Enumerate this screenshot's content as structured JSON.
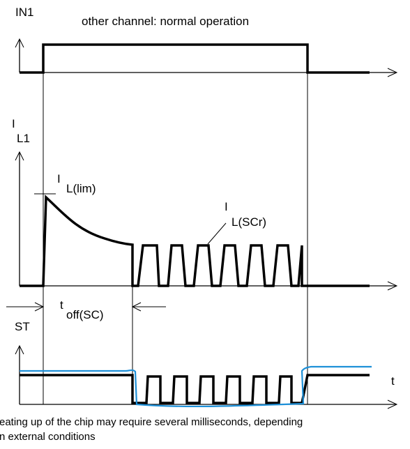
{
  "top_signal": {
    "name": "IN1",
    "note": "other channel: normal operation"
  },
  "middle_signal": {
    "name_main": "I",
    "name_sub": "L1",
    "limit_main": "I",
    "limit_sub": "L(lim)",
    "scr_main": "I",
    "scr_sub": "L(SCr)",
    "time_main": "t",
    "time_sub": "off(SC)"
  },
  "bottom_signal": {
    "name": "ST",
    "axis_label": "t"
  },
  "footnote": {
    "line1": "eating up of the chip may require several milliseconds, depending",
    "line2": "n external conditions"
  },
  "colors": {
    "signal": "#000000",
    "status_overlay": "#1e90d8"
  }
}
